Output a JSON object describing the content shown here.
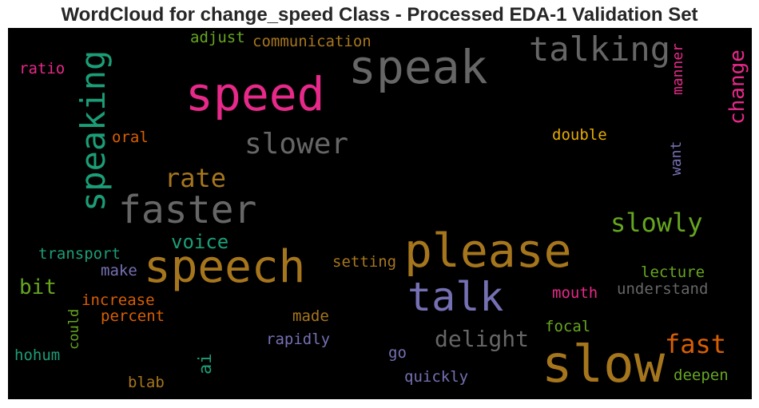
{
  "title": "WordCloud for change_speed Class - Processed EDA-1 Validation Set",
  "words": [
    {
      "text": "speak",
      "color": "#666666"
    },
    {
      "text": "speed",
      "color": "#e7298a"
    },
    {
      "text": "talking",
      "color": "#666666"
    },
    {
      "text": "speaking",
      "color": "#1b9e77"
    },
    {
      "text": "change",
      "color": "#e7298a"
    },
    {
      "text": "faster",
      "color": "#666666"
    },
    {
      "text": "slower",
      "color": "#666666"
    },
    {
      "text": "please",
      "color": "#a6761d"
    },
    {
      "text": "speech",
      "color": "#a6761d"
    },
    {
      "text": "slow",
      "color": "#a6761d"
    },
    {
      "text": "talk",
      "color": "#7570b3"
    },
    {
      "text": "slowly",
      "color": "#66a61e"
    },
    {
      "text": "rate",
      "color": "#a6761d"
    },
    {
      "text": "fast",
      "color": "#d95f02"
    },
    {
      "text": "delight",
      "color": "#666666"
    },
    {
      "text": "voice",
      "color": "#1b9e77"
    },
    {
      "text": "bit",
      "color": "#66a61e"
    },
    {
      "text": "adjust",
      "color": "#66a61e"
    },
    {
      "text": "communication",
      "color": "#a6761d"
    },
    {
      "text": "ratio",
      "color": "#e7298a"
    },
    {
      "text": "manner",
      "color": "#e7298a"
    },
    {
      "text": "oral",
      "color": "#d95f02"
    },
    {
      "text": "double",
      "color": "#e6ab02"
    },
    {
      "text": "want",
      "color": "#7570b3"
    },
    {
      "text": "transport",
      "color": "#1b9e77"
    },
    {
      "text": "make",
      "color": "#7570b3"
    },
    {
      "text": "setting",
      "color": "#a6761d"
    },
    {
      "text": "lecture",
      "color": "#66a61e"
    },
    {
      "text": "understand",
      "color": "#666666"
    },
    {
      "text": "mouth",
      "color": "#e7298a"
    },
    {
      "text": "increase",
      "color": "#d95f02"
    },
    {
      "text": "could",
      "color": "#66a61e"
    },
    {
      "text": "percent",
      "color": "#d95f02"
    },
    {
      "text": "made",
      "color": "#a6761d"
    },
    {
      "text": "focal",
      "color": "#66a61e"
    },
    {
      "text": "rapidly",
      "color": "#7570b3"
    },
    {
      "text": "hohum",
      "color": "#1b9e77"
    },
    {
      "text": "ai",
      "color": "#1b9e77"
    },
    {
      "text": "go",
      "color": "#7570b3"
    },
    {
      "text": "deepen",
      "color": "#66a61e"
    },
    {
      "text": "quickly",
      "color": "#7570b3"
    },
    {
      "text": "blab",
      "color": "#a6761d"
    }
  ]
}
